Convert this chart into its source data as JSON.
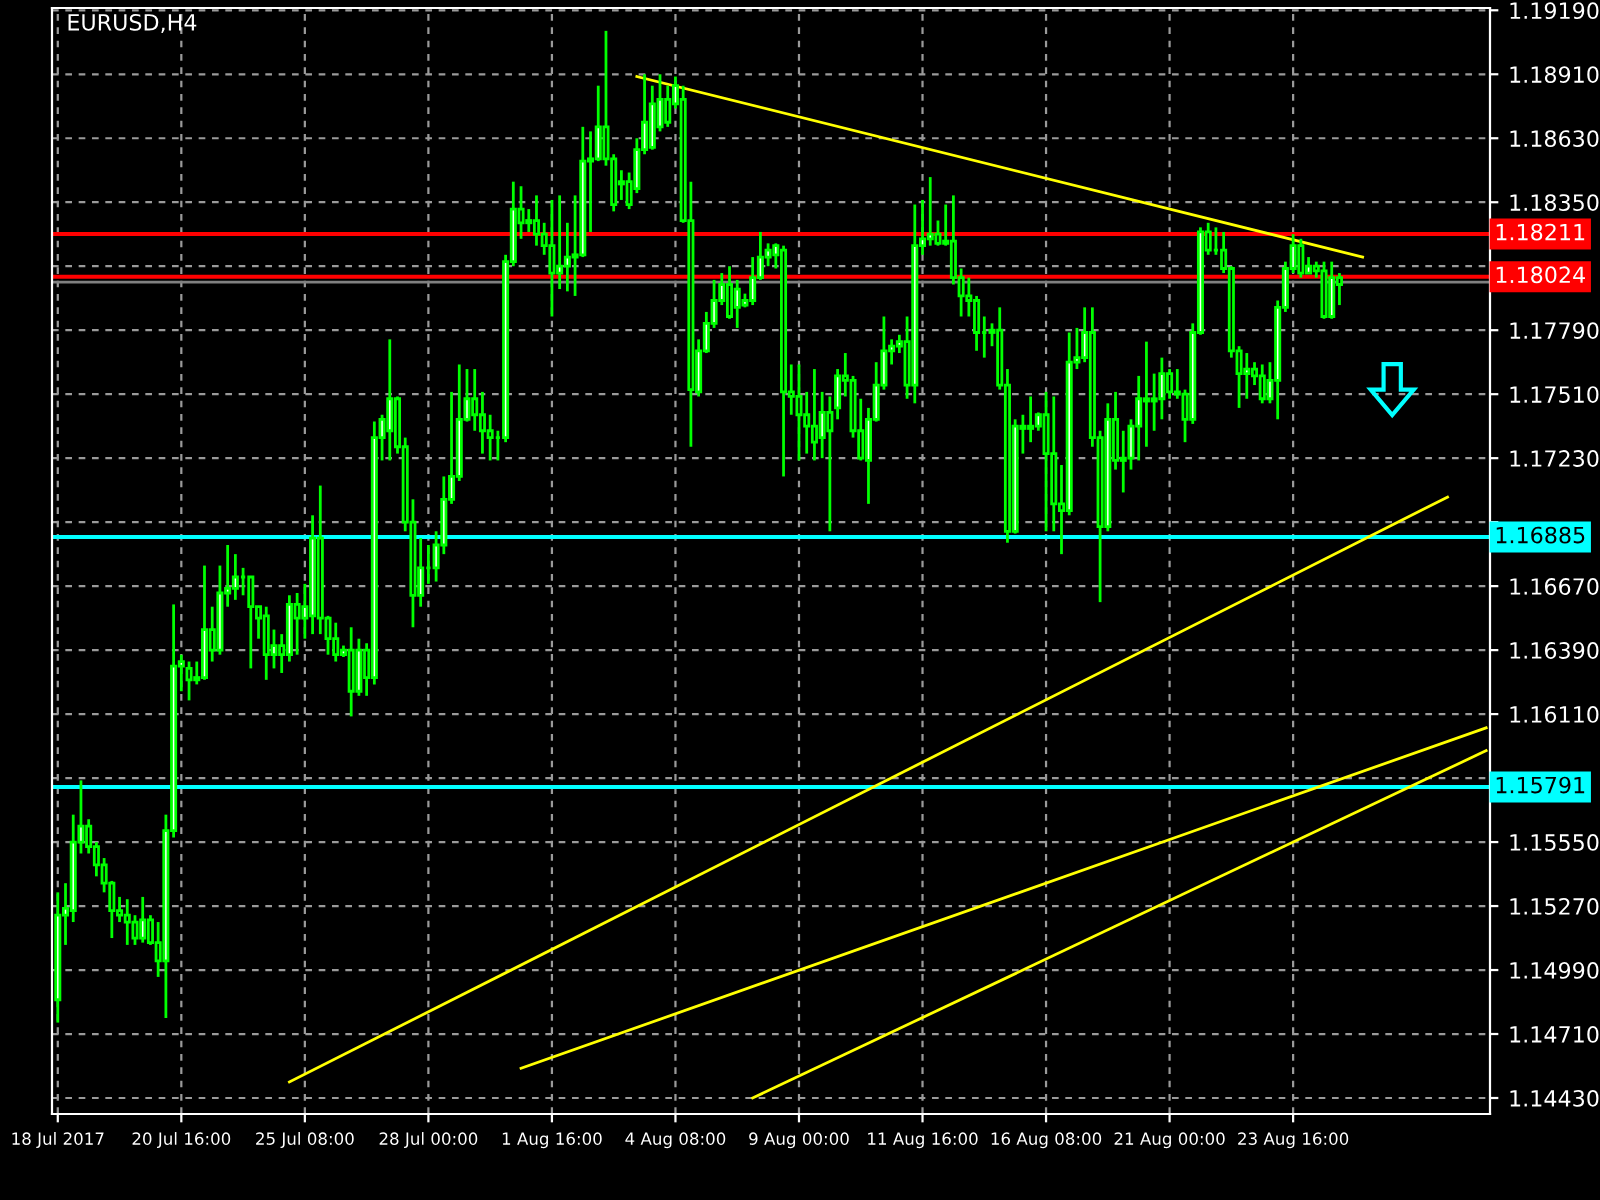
{
  "chart_data": {
    "type": "candlestick",
    "title": "EURUSD,H4",
    "categories": [
      "18 Jul 2017",
      null,
      null,
      null,
      null,
      null,
      null,
      null,
      null,
      null,
      null,
      null,
      null,
      null,
      null,
      null,
      "20 Jul 16:00",
      null,
      null,
      null,
      null,
      null,
      null,
      null,
      null,
      null,
      null,
      null,
      null,
      null,
      null,
      null,
      "25 Jul 08:00",
      null,
      null,
      null,
      null,
      null,
      null,
      null,
      null,
      null,
      null,
      null,
      null,
      null,
      null,
      null,
      "28 Jul 00:00",
      null,
      null,
      null,
      null,
      null,
      null,
      null,
      null,
      null,
      null,
      null,
      null,
      null,
      null,
      null,
      "1 Aug 16:00",
      null,
      null,
      null,
      null,
      null,
      null,
      null,
      null,
      null,
      null,
      null,
      null,
      null,
      null,
      null,
      "4 Aug 08:00",
      null,
      null,
      null,
      null,
      null,
      null,
      null,
      null,
      null,
      null,
      null,
      null,
      null,
      null,
      null,
      "9 Aug 00:00",
      null,
      null,
      null,
      null,
      null,
      null,
      null,
      null,
      null,
      null,
      null,
      null,
      null,
      null,
      null,
      "11 Aug 16:00",
      null,
      null,
      null,
      null,
      null,
      null,
      null,
      null,
      null,
      null,
      null,
      null,
      null,
      null,
      null,
      "16 Aug 08:00",
      null,
      null,
      null,
      null,
      null,
      null,
      null,
      null,
      null,
      null,
      null,
      null,
      null,
      null,
      null,
      "21 Aug 00:00",
      null,
      null,
      null,
      null,
      null,
      null,
      null,
      null,
      null,
      null,
      null,
      null,
      null,
      null,
      null,
      "23 Aug 16:00",
      null,
      null,
      null,
      null,
      null,
      null,
      null,
      null,
      null,
      null,
      null,
      null,
      null,
      null,
      null,
      null,
      null,
      null,
      null,
      null,
      null,
      null,
      null,
      null,
      null
    ],
    "ohlc": [
      [
        1.1486,
        1.1533,
        1.1476,
        1.1523
      ],
      [
        1.1523,
        1.1537,
        1.151,
        1.1526
      ],
      [
        1.1525,
        1.1567,
        1.152,
        1.1555
      ],
      [
        1.1555,
        1.1582,
        1.155,
        1.1562
      ],
      [
        1.1562,
        1.1565,
        1.155,
        1.1553
      ],
      [
        1.1553,
        1.1555,
        1.154,
        1.1545
      ],
      [
        1.1545,
        1.1548,
        1.1533,
        1.1537
      ],
      [
        1.1537,
        1.1538,
        1.1513,
        1.1525
      ],
      [
        1.1525,
        1.1531,
        1.152,
        1.1523
      ],
      [
        1.1523,
        1.153,
        1.151,
        1.152
      ],
      [
        1.152,
        1.1523,
        1.151,
        1.1513
      ],
      [
        1.1513,
        1.1531,
        1.1511,
        1.1521
      ],
      [
        1.1521,
        1.1523,
        1.151,
        1.1511
      ],
      [
        1.1511,
        1.152,
        1.1496,
        1.1503
      ],
      [
        1.1503,
        1.1567,
        1.1478,
        1.156
      ],
      [
        1.156,
        1.1659,
        1.1557,
        1.1632
      ],
      [
        1.1632,
        1.1637,
        1.1621,
        1.1634
      ],
      [
        1.1631,
        1.1634,
        1.1617,
        1.1626
      ],
      [
        1.1626,
        1.1634,
        1.1624,
        1.1627
      ],
      [
        1.1627,
        1.1676,
        1.1626,
        1.1648
      ],
      [
        1.1648,
        1.1658,
        1.1634,
        1.1639
      ],
      [
        1.1639,
        1.1676,
        1.1637,
        1.1664
      ],
      [
        1.1664,
        1.1685,
        1.1658,
        1.1666
      ],
      [
        1.1666,
        1.1681,
        1.1661,
        1.1671
      ],
      [
        1.1671,
        1.1675,
        1.1663,
        1.1671
      ],
      [
        1.1671,
        1.1671,
        1.1631,
        1.1658
      ],
      [
        1.1658,
        1.1658,
        1.1644,
        1.1653
      ],
      [
        1.1654,
        1.1658,
        1.1626,
        1.1637
      ],
      [
        1.1637,
        1.1648,
        1.1631,
        1.1641
      ],
      [
        1.1641,
        1.1646,
        1.1629,
        1.1637
      ],
      [
        1.1637,
        1.1663,
        1.1634,
        1.1659
      ],
      [
        1.1659,
        1.1664,
        1.1637,
        1.1653
      ],
      [
        1.1653,
        1.1668,
        1.1644,
        1.1658
      ],
      [
        1.1654,
        1.1698,
        1.1646,
        1.1688
      ],
      [
        1.1688,
        1.1711,
        1.1646,
        1.1653
      ],
      [
        1.1653,
        1.1654,
        1.1637,
        1.1644
      ],
      [
        1.1644,
        1.1651,
        1.1634,
        1.1637
      ],
      [
        1.1637,
        1.1641,
        1.1636,
        1.1639
      ],
      [
        1.1639,
        1.1649,
        1.161,
        1.1621
      ],
      [
        1.1621,
        1.1644,
        1.1619,
        1.1639
      ],
      [
        1.1639,
        1.1642,
        1.1619,
        1.1627
      ],
      [
        1.1627,
        1.1739,
        1.1624,
        1.1732
      ],
      [
        1.1732,
        1.1742,
        1.1722,
        1.174
      ],
      [
        1.1735,
        1.1775,
        1.1722,
        1.1749
      ],
      [
        1.1749,
        1.175,
        1.1725,
        1.1728
      ],
      [
        1.1728,
        1.1732,
        1.1691,
        1.1695
      ],
      [
        1.1695,
        1.1705,
        1.1649,
        1.1663
      ],
      [
        1.1663,
        1.1688,
        1.1658,
        1.1675
      ],
      [
        1.1675,
        1.1685,
        1.1668,
        1.1675
      ],
      [
        1.1675,
        1.1691,
        1.1669,
        1.1685
      ],
      [
        1.1685,
        1.1715,
        1.1681,
        1.1705
      ],
      [
        1.1705,
        1.1752,
        1.1703,
        1.1715
      ],
      [
        1.1715,
        1.1764,
        1.1713,
        1.174
      ],
      [
        1.174,
        1.1762,
        1.1739,
        1.1749
      ],
      [
        1.1749,
        1.1762,
        1.1735,
        1.1742
      ],
      [
        1.1742,
        1.1752,
        1.1725,
        1.1735
      ],
      [
        1.1735,
        1.1742,
        1.1722,
        1.1732
      ],
      [
        1.1732,
        1.1735,
        1.1722,
        1.1732
      ],
      [
        1.1732,
        1.1812,
        1.173,
        1.1809
      ],
      [
        1.1809,
        1.1844,
        1.1807,
        1.1832
      ],
      [
        1.1832,
        1.1842,
        1.1819,
        1.1826
      ],
      [
        1.1826,
        1.1832,
        1.1822,
        1.1827
      ],
      [
        1.1827,
        1.1838,
        1.1816,
        1.1821
      ],
      [
        1.1821,
        1.1826,
        1.1812,
        1.1816
      ],
      [
        1.1816,
        1.1836,
        1.1785,
        1.1804
      ],
      [
        1.1804,
        1.1838,
        1.1797,
        1.1807
      ],
      [
        1.1807,
        1.1826,
        1.1796,
        1.1811
      ],
      [
        1.1811,
        1.1838,
        1.1794,
        1.1812
      ],
      [
        1.1812,
        1.1868,
        1.1811,
        1.1853
      ],
      [
        1.1853,
        1.1866,
        1.1822,
        1.1854
      ],
      [
        1.1854,
        1.1886,
        1.1853,
        1.1868
      ],
      [
        1.1868,
        1.191,
        1.1851,
        1.1854
      ],
      [
        1.1854,
        1.1856,
        1.1831,
        1.1834
      ],
      [
        1.1843,
        1.1849,
        1.1836,
        1.1844
      ],
      [
        1.1844,
        1.1848,
        1.1832,
        1.1834
      ],
      [
        1.1841,
        1.1863,
        1.1839,
        1.1858
      ],
      [
        1.1858,
        1.1891,
        1.1856,
        1.187
      ],
      [
        1.1859,
        1.1886,
        1.1858,
        1.1878
      ],
      [
        1.1868,
        1.1891,
        1.1866,
        1.188
      ],
      [
        1.188,
        1.1886,
        1.1868,
        1.187
      ],
      [
        1.1878,
        1.189,
        1.1876,
        1.1886
      ],
      [
        1.188,
        1.1886,
        1.1826,
        1.1827
      ],
      [
        1.1827,
        1.1844,
        1.1728,
        1.1753
      ],
      [
        1.1752,
        1.1775,
        1.175,
        1.177
      ],
      [
        1.177,
        1.1787,
        1.1769,
        1.1782
      ],
      [
        1.1782,
        1.1801,
        1.178,
        1.1792
      ],
      [
        1.1792,
        1.1804,
        1.179,
        1.1799
      ],
      [
        1.1799,
        1.1807,
        1.1784,
        1.1785
      ],
      [
        1.1789,
        1.1801,
        1.178,
        1.1797
      ],
      [
        1.179,
        1.1795,
        1.1789,
        1.1792
      ],
      [
        1.1792,
        1.1811,
        1.179,
        1.1802
      ],
      [
        1.1802,
        1.1822,
        1.1801,
        1.1811
      ],
      [
        1.1811,
        1.1817,
        1.1807,
        1.1814
      ],
      [
        1.1812,
        1.1817,
        1.1806,
        1.1816
      ],
      [
        1.1814,
        1.1816,
        1.1715,
        1.1752
      ],
      [
        1.1752,
        1.1764,
        1.1742,
        1.175
      ],
      [
        1.175,
        1.1764,
        1.1722,
        1.1742
      ],
      [
        1.1742,
        1.1752,
        1.1725,
        1.1737
      ],
      [
        1.1737,
        1.1762,
        1.1722,
        1.173
      ],
      [
        1.1732,
        1.1752,
        1.1723,
        1.1743
      ],
      [
        1.1743,
        1.175,
        1.1691,
        1.1735
      ],
      [
        1.1745,
        1.1762,
        1.174,
        1.1759
      ],
      [
        1.1759,
        1.1769,
        1.175,
        1.1757
      ],
      [
        1.1757,
        1.1759,
        1.1732,
        1.1735
      ],
      [
        1.1735,
        1.1749,
        1.1722,
        1.1723
      ],
      [
        1.1722,
        1.1745,
        1.1703,
        1.174
      ],
      [
        1.174,
        1.1765,
        1.1739,
        1.1755
      ],
      [
        1.1755,
        1.1785,
        1.1753,
        1.177
      ],
      [
        1.177,
        1.1775,
        1.1764,
        1.1772
      ],
      [
        1.1772,
        1.1777,
        1.1769,
        1.1774
      ],
      [
        1.1774,
        1.1785,
        1.1749,
        1.1755
      ],
      [
        1.1755,
        1.1834,
        1.1747,
        1.1816
      ],
      [
        1.1816,
        1.1836,
        1.1812,
        1.1819
      ],
      [
        1.1819,
        1.1846,
        1.1816,
        1.1821
      ],
      [
        1.1821,
        1.1827,
        1.1816,
        1.1817
      ],
      [
        1.1817,
        1.1834,
        1.1816,
        1.1818
      ],
      [
        1.1818,
        1.1838,
        1.1799,
        1.1802
      ],
      [
        1.1802,
        1.1806,
        1.1785,
        1.1794
      ],
      [
        1.1794,
        1.1802,
        1.1785,
        1.1792
      ],
      [
        1.1792,
        1.1794,
        1.177,
        1.1778
      ],
      [
        1.1778,
        1.1785,
        1.1767,
        1.1778
      ],
      [
        1.1778,
        1.1782,
        1.1772,
        1.1779
      ],
      [
        1.1779,
        1.1789,
        1.1753,
        1.1755
      ],
      [
        1.1755,
        1.1762,
        1.1686,
        1.1691
      ],
      [
        1.1691,
        1.174,
        1.169,
        1.1737
      ],
      [
        1.1737,
        1.1742,
        1.1725,
        1.1736
      ],
      [
        1.1736,
        1.175,
        1.173,
        1.1737
      ],
      [
        1.1737,
        1.1743,
        1.1735,
        1.1742
      ],
      [
        1.1742,
        1.1752,
        1.1691,
        1.1725
      ],
      [
        1.1725,
        1.175,
        1.1691,
        1.1703
      ],
      [
        1.1703,
        1.172,
        1.1681,
        1.17
      ],
      [
        1.17,
        1.1778,
        1.1698,
        1.1765
      ],
      [
        1.1765,
        1.178,
        1.1762,
        1.1767
      ],
      [
        1.1767,
        1.1789,
        1.1765,
        1.1778
      ],
      [
        1.1778,
        1.1789,
        1.1728,
        1.1732
      ],
      [
        1.1732,
        1.1735,
        1.166,
        1.1693
      ],
      [
        1.1693,
        1.1747,
        1.1691,
        1.174
      ],
      [
        1.174,
        1.1752,
        1.1718,
        1.1722
      ],
      [
        1.1722,
        1.1735,
        1.1708,
        1.1723
      ],
      [
        1.1723,
        1.174,
        1.1718,
        1.1737
      ],
      [
        1.1737,
        1.1759,
        1.1722,
        1.1749
      ],
      [
        1.1749,
        1.1774,
        1.1728,
        1.1748
      ],
      [
        1.1748,
        1.176,
        1.1735,
        1.1749
      ],
      [
        1.1749,
        1.1767,
        1.174,
        1.176
      ],
      [
        1.176,
        1.1762,
        1.1749,
        1.1752
      ],
      [
        1.1752,
        1.1762,
        1.1749,
        1.1751
      ],
      [
        1.1751,
        1.1753,
        1.173,
        1.174
      ],
      [
        1.174,
        1.1782,
        1.1738,
        1.1778
      ],
      [
        1.1778,
        1.1824,
        1.1777,
        1.1822
      ],
      [
        1.1822,
        1.1826,
        1.1812,
        1.1814
      ],
      [
        1.1814,
        1.1824,
        1.1812,
        1.1814
      ],
      [
        1.1814,
        1.1822,
        1.1804,
        1.1806
      ],
      [
        1.1806,
        1.1807,
        1.1767,
        1.177
      ],
      [
        1.177,
        1.1772,
        1.1745,
        1.176
      ],
      [
        1.176,
        1.1769,
        1.1749,
        1.1762
      ],
      [
        1.1762,
        1.1765,
        1.1755,
        1.1759
      ],
      [
        1.1759,
        1.1764,
        1.1747,
        1.1749
      ],
      [
        1.1749,
        1.1765,
        1.1747,
        1.1757
      ],
      [
        1.1757,
        1.1792,
        1.174,
        1.1789
      ],
      [
        1.1789,
        1.1809,
        1.1787,
        1.1806
      ],
      [
        1.1806,
        1.1821,
        1.1804,
        1.1816
      ],
      [
        1.1816,
        1.1819,
        1.1802,
        1.1804
      ],
      [
        1.1804,
        1.1811,
        1.1804,
        1.1807
      ],
      [
        1.1807,
        1.1809,
        1.1802,
        1.1805
      ],
      [
        1.1805,
        1.1809,
        1.1784,
        1.1785
      ],
      [
        1.1785,
        1.1809,
        1.1784,
        1.1802
      ],
      [
        1.1802,
        1.1804,
        1.179,
        1.1799
      ],
      null,
      null,
      null,
      null,
      null,
      null,
      null,
      null,
      null,
      null,
      null,
      null,
      null,
      null,
      null,
      null,
      null,
      null,
      null
    ],
    "series": [
      {
        "type": "line",
        "color": "#ffff00",
        "values": [
          null,
          null,
          null,
          null,
          null,
          null,
          null,
          null,
          null,
          null,
          null,
          null,
          null,
          null,
          null,
          null,
          null,
          null,
          null,
          null,
          null,
          null,
          null,
          null,
          null,
          null,
          null,
          null,
          null,
          null,
          null,
          null,
          null,
          null,
          null,
          null,
          null,
          null,
          null,
          null,
          null,
          null,
          null,
          null,
          null,
          null,
          null,
          null,
          null,
          null,
          null,
          null,
          null,
          null,
          null,
          null,
          null,
          null,
          null,
          null,
          null,
          null,
          null,
          null,
          null,
          null,
          null,
          null,
          null,
          null,
          null,
          null,
          null,
          null,
          null,
          1.189,
          null,
          null,
          null,
          null,
          null,
          null,
          null,
          null,
          null,
          null,
          null,
          null,
          null,
          null,
          null,
          null,
          null,
          null,
          null,
          null,
          null,
          null,
          null,
          null,
          null,
          null,
          null,
          null,
          null,
          null,
          null,
          null,
          null,
          null,
          null,
          null,
          null,
          null,
          null,
          null,
          null,
          null,
          null,
          null,
          null,
          null,
          null,
          null,
          null,
          null,
          null,
          null,
          null,
          null,
          null,
          null,
          null,
          null,
          null,
          null,
          null,
          null,
          null,
          null,
          null,
          null,
          null,
          null,
          null,
          null,
          null,
          null,
          null,
          null,
          null,
          null,
          null,
          null,
          null,
          null,
          null,
          null,
          null,
          null,
          null,
          null,
          null,
          null,
          null,
          null,
          null,
          null,
          null,
          1.1811,
          null,
          null,
          null,
          null,
          null,
          null,
          null,
          null,
          null,
          null,
          null,
          null,
          null,
          null,
          null,
          null
        ]
      },
      {
        "type": "line",
        "color": "#ffff00",
        "values": [
          null,
          null,
          null,
          null,
          null,
          null,
          null,
          null,
          null,
          null,
          null,
          null,
          null,
          null,
          null,
          null,
          null,
          null,
          null,
          null,
          null,
          null,
          null,
          null,
          null,
          null,
          null,
          null,
          null,
          null,
          1.145,
          null,
          null,
          null,
          null,
          null,
          null,
          null,
          null,
          null,
          null,
          null,
          null,
          null,
          null,
          null,
          null,
          null,
          null,
          null,
          null,
          null,
          null,
          null,
          null,
          null,
          null,
          null,
          null,
          null,
          null,
          null,
          null,
          null,
          null,
          null,
          null,
          null,
          null,
          null,
          null,
          null,
          null,
          null,
          null,
          null,
          null,
          null,
          null,
          null,
          null,
          null,
          null,
          null,
          null,
          null,
          null,
          null,
          null,
          null,
          null,
          null,
          null,
          null,
          null,
          null,
          null,
          null,
          null,
          null,
          null,
          null,
          null,
          null,
          null,
          null,
          null,
          null,
          null,
          null,
          null,
          null,
          null,
          null,
          null,
          null,
          null,
          null,
          null,
          null,
          null,
          null,
          null,
          null,
          null,
          null,
          null,
          null,
          null,
          null,
          null,
          null,
          null,
          null,
          null,
          null,
          null,
          null,
          null,
          null,
          null,
          null,
          null,
          null,
          null,
          null,
          null,
          null,
          null,
          null,
          null,
          null,
          null,
          null,
          null,
          null,
          null,
          null,
          null,
          null,
          null,
          null,
          null,
          null,
          null,
          null,
          null,
          null,
          null,
          null,
          null,
          null,
          null,
          null,
          null,
          null,
          null,
          null,
          null,
          null,
          1.1706,
          null,
          null,
          null,
          null,
          null
        ]
      },
      {
        "type": "line",
        "color": "#ffff00",
        "values": [
          null,
          null,
          null,
          null,
          null,
          null,
          null,
          null,
          null,
          null,
          null,
          null,
          null,
          null,
          null,
          null,
          null,
          null,
          null,
          null,
          null,
          null,
          null,
          null,
          null,
          null,
          null,
          null,
          null,
          null,
          null,
          null,
          null,
          null,
          null,
          null,
          null,
          null,
          null,
          null,
          null,
          null,
          null,
          null,
          null,
          null,
          null,
          null,
          null,
          null,
          null,
          null,
          null,
          null,
          null,
          null,
          null,
          null,
          null,
          null,
          1.1456,
          null,
          null,
          null,
          null,
          null,
          null,
          null,
          null,
          null,
          null,
          null,
          null,
          null,
          null,
          null,
          null,
          null,
          null,
          null,
          null,
          null,
          null,
          null,
          null,
          null,
          null,
          null,
          null,
          null,
          null,
          null,
          null,
          null,
          null,
          null,
          null,
          null,
          null,
          null,
          null,
          null,
          null,
          null,
          null,
          null,
          null,
          null,
          null,
          null,
          null,
          null,
          null,
          null,
          null,
          null,
          null,
          null,
          null,
          null,
          null,
          null,
          null,
          null,
          null,
          null,
          null,
          null,
          null,
          null,
          null,
          null,
          null,
          null,
          null,
          null,
          null,
          null,
          null,
          null,
          null,
          null,
          null,
          null,
          null,
          null,
          null,
          null,
          null,
          null,
          null,
          null,
          null,
          null,
          null,
          null,
          null,
          null,
          null,
          null,
          null,
          null,
          null,
          null,
          null,
          null,
          null,
          null,
          null,
          null,
          null,
          null,
          null,
          null,
          null,
          null,
          null,
          null,
          null,
          null,
          null,
          null,
          null,
          null,
          null,
          1.1605
        ]
      },
      {
        "type": "line",
        "color": "#ffff00",
        "values": [
          null,
          null,
          null,
          null,
          null,
          null,
          null,
          null,
          null,
          null,
          null,
          null,
          null,
          null,
          null,
          null,
          null,
          null,
          null,
          null,
          null,
          null,
          null,
          null,
          null,
          null,
          null,
          null,
          null,
          null,
          null,
          null,
          null,
          null,
          null,
          null,
          null,
          null,
          null,
          null,
          null,
          null,
          null,
          null,
          null,
          null,
          null,
          null,
          null,
          null,
          null,
          null,
          null,
          null,
          null,
          null,
          null,
          null,
          null,
          null,
          null,
          null,
          null,
          null,
          null,
          null,
          null,
          null,
          null,
          null,
          null,
          null,
          null,
          null,
          null,
          null,
          null,
          null,
          null,
          null,
          null,
          null,
          null,
          null,
          null,
          null,
          null,
          null,
          null,
          null,
          1.1443,
          null,
          null,
          null,
          null,
          null,
          null,
          null,
          null,
          null,
          null,
          null,
          null,
          null,
          null,
          null,
          null,
          null,
          null,
          null,
          null,
          null,
          null,
          null,
          null,
          null,
          null,
          null,
          null,
          null,
          null,
          null,
          null,
          null,
          null,
          null,
          null,
          null,
          null,
          null,
          null,
          null,
          null,
          null,
          null,
          null,
          null,
          null,
          null,
          null,
          null,
          null,
          null,
          null,
          null,
          null,
          null,
          null,
          null,
          null,
          null,
          null,
          null,
          null,
          null,
          null,
          null,
          null,
          null,
          null,
          null,
          null,
          null,
          null,
          null,
          null,
          null,
          null,
          null,
          null,
          null,
          null,
          null,
          null,
          null,
          null,
          null,
          null,
          null,
          null,
          null,
          null,
          null,
          null,
          null,
          1.1595
        ]
      }
    ],
    "ylim": [
      1.1436,
      1.192
    ],
    "yticks": [
      {
        "value": 1.1919,
        "label": "1.19190"
      },
      {
        "value": 1.1891,
        "label": "1.18910"
      },
      {
        "value": 1.1863,
        "label": "1.18630"
      },
      {
        "value": 1.1835,
        "label": "1.18350"
      },
      {
        "value": 1.1807,
        "label": null
      },
      {
        "value": 1.1779,
        "label": "1.17790"
      },
      {
        "value": 1.1751,
        "label": "1.17510"
      },
      {
        "value": 1.1723,
        "label": "1.17230"
      },
      {
        "value": 1.1695,
        "label": null
      },
      {
        "value": 1.1667,
        "label": "1.16670"
      },
      {
        "value": 1.1639,
        "label": "1.16390"
      },
      {
        "value": 1.1611,
        "label": "1.16110"
      },
      {
        "value": 1.1583,
        "label": null
      },
      {
        "value": 1.1555,
        "label": "1.15550"
      },
      {
        "value": 1.1527,
        "label": "1.15270"
      },
      {
        "value": 1.1499,
        "label": "1.14990"
      },
      {
        "value": 1.1471,
        "label": "1.14710"
      },
      {
        "value": 1.1443,
        "label": "1.14430"
      }
    ],
    "ref_lines": [
      {
        "axis": "y",
        "value": 1.18211,
        "label": "1.18211",
        "color": "#ff0000"
      },
      {
        "axis": "y",
        "value": 1.18024,
        "label": "1.18024",
        "color": "#ff0000"
      },
      {
        "axis": "y",
        "value": 1.18,
        "color": "#808080"
      },
      {
        "axis": "y",
        "value": 1.16885,
        "label": "1.16885",
        "color": "#00ffff"
      },
      {
        "axis": "y",
        "value": 1.15791,
        "label": "1.15791",
        "color": "#00ffff"
      }
    ],
    "grid": true
  }
}
